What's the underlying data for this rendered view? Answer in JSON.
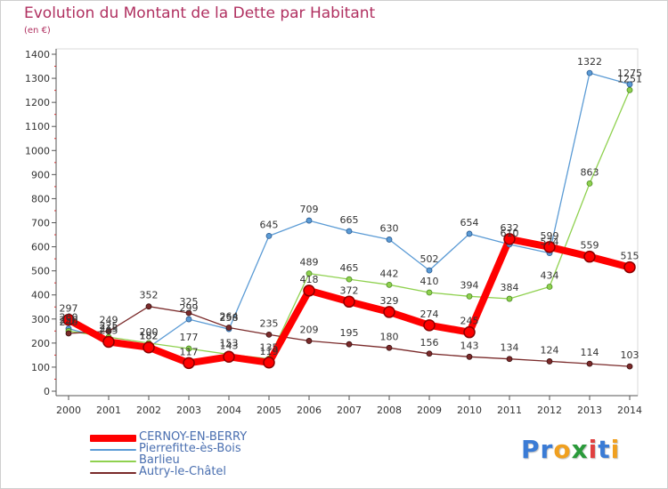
{
  "title": "Evolution du Montant de la Dette par Habitant",
  "subtitle": "(en €)",
  "logo": {
    "text": "Proxiti",
    "colors": [
      "#3a7bd5",
      "#3a7bd5",
      "#f0a020",
      "#2a9a3a",
      "#e04040",
      "#3a7bd5",
      "#f0a020"
    ]
  },
  "chart_data": {
    "type": "line",
    "title": "Evolution du Montant de la Dette par Habitant",
    "subtitle": "(en €)",
    "xlabel": "",
    "ylabel": "",
    "x": [
      2000,
      2001,
      2002,
      2003,
      2004,
      2005,
      2006,
      2007,
      2008,
      2009,
      2010,
      2011,
      2012,
      2013,
      2014
    ],
    "ylim": [
      0,
      1400
    ],
    "yticks": [
      0,
      100,
      200,
      300,
      400,
      500,
      600,
      700,
      800,
      900,
      1000,
      1100,
      1200,
      1300,
      1400
    ],
    "grid": false,
    "legend_position": "bottom-left",
    "series": [
      {
        "name": "CERNOY-EN-BERRY",
        "color": "#ff0000",
        "values": [
          297,
          205,
          182,
          117,
          143,
          119,
          418,
          372,
          329,
          274,
          245,
          632,
          599,
          559,
          515
        ],
        "labels": [
          "297",
          "205",
          "182",
          "117",
          "143",
          "119",
          "418",
          "372",
          "329",
          "274",
          "245",
          "632",
          "599",
          "559",
          "515"
        ]
      },
      {
        "name": "Pierrefitte-ès-Bois",
        "color": "#5b9bd5",
        "values": [
          260,
          215,
          182,
          299,
          258,
          645,
          709,
          665,
          630,
          502,
          654,
          610,
          574,
          1322,
          1275
        ],
        "labels": [
          "260",
          "215",
          "182",
          "299",
          "258",
          "645",
          "709",
          "665",
          "630",
          "502",
          "654",
          "610",
          "574",
          "1322",
          "1275"
        ]
      },
      {
        "name": "Barlieu",
        "color": "#8fd14f",
        "values": [
          250,
          225,
          200,
          177,
          153,
          135,
          489,
          465,
          442,
          410,
          394,
          384,
          434,
          863,
          1251
        ],
        "labels": [
          "250",
          "225",
          "200",
          "177",
          "153",
          "135",
          "489",
          "465",
          "442",
          "410",
          "394",
          "384",
          "434",
          "863",
          "1251"
        ]
      },
      {
        "name": "Autry-le-Châtel",
        "color": "#7a2a2a",
        "values": [
          240,
          249,
          352,
          325,
          264,
          235,
          209,
          195,
          180,
          156,
          143,
          134,
          124,
          114,
          103
        ],
        "labels": [
          "240",
          "249",
          "352",
          "325",
          "264",
          "235",
          "209",
          "195",
          "180",
          "156",
          "143",
          "134",
          "124",
          "114",
          "103"
        ]
      }
    ]
  }
}
